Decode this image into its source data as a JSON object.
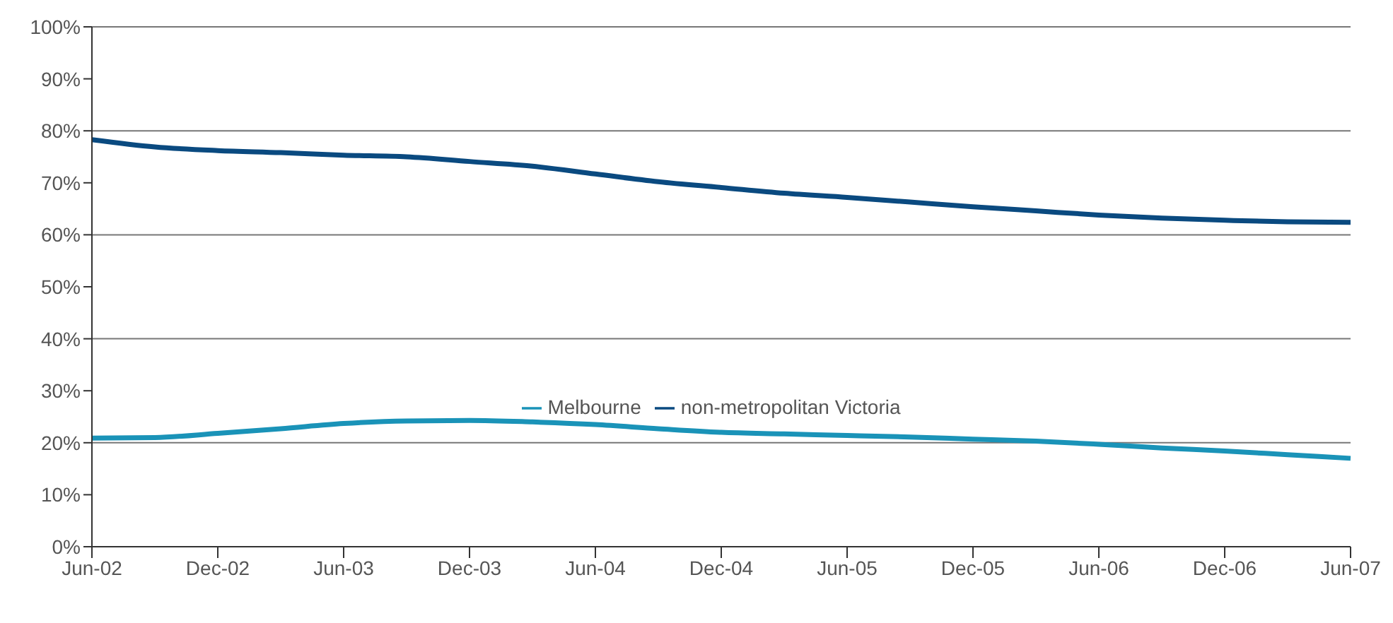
{
  "chart_data": {
    "type": "line",
    "categories": [
      "Jun-02",
      null,
      "Dec-02",
      null,
      "Jun-03",
      null,
      "Dec-03",
      null,
      "Jun-04",
      null,
      "Dec-04",
      null,
      "Jun-05",
      null,
      "Dec-05",
      null,
      "Jun-06",
      null,
      "Dec-06",
      null,
      "Jun-07"
    ],
    "series": [
      {
        "name": "Melbourne",
        "color": "#1a93b8",
        "values": [
          20.9,
          21.0,
          21.8,
          22.7,
          23.7,
          24.2,
          24.3,
          24.0,
          23.5,
          22.7,
          22.0,
          21.7,
          21.4,
          21.1,
          20.7,
          20.3,
          19.7,
          19.0,
          18.4,
          17.7,
          17.0
        ]
      },
      {
        "name": "non-metropolitan Victoria",
        "color": "#0a4a80",
        "values": [
          78.3,
          76.9,
          76.2,
          75.8,
          75.3,
          75.0,
          74.1,
          73.2,
          71.7,
          70.2,
          69.1,
          68.0,
          67.2,
          66.3,
          65.4,
          64.6,
          63.8,
          63.2,
          62.8,
          62.5,
          62.4
        ]
      }
    ],
    "ylim": [
      0,
      100
    ],
    "yticks": [
      {
        "value": 0,
        "label": "0%"
      },
      {
        "value": 10,
        "label": "10%"
      },
      {
        "value": 20,
        "label": "20%"
      },
      {
        "value": 30,
        "label": "30%"
      },
      {
        "value": 40,
        "label": "40%"
      },
      {
        "value": 50,
        "label": "50%"
      },
      {
        "value": 60,
        "label": "60%"
      },
      {
        "value": 70,
        "label": "70%"
      },
      {
        "value": 80,
        "label": "80%"
      },
      {
        "value": 90,
        "label": "90%"
      },
      {
        "value": 100,
        "label": "100%"
      }
    ],
    "grid": "y",
    "legend": "center",
    "marker": "none",
    "line_style": "solid"
  }
}
